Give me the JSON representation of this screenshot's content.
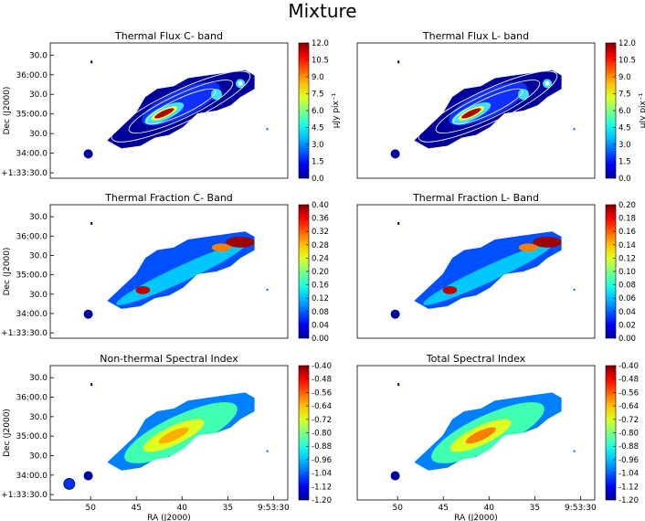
{
  "figure_title": "Mixture",
  "chart_data": [
    {
      "type": "heatmap",
      "title": "Thermal Flux C- band",
      "xlabel": "",
      "ylabel": "Dec (J2000)",
      "y_ticks": [
        "30.0",
        "36:00.0",
        "30.0",
        "35:00.0",
        "30.0",
        "34:00.0",
        "+1:33:30.0"
      ],
      "x_ticks": [],
      "colorbar": {
        "min": 0.0,
        "max": 12.0,
        "ticks": [
          "12.0",
          "10.5",
          "9.0",
          "7.5",
          "6.0",
          "4.5",
          "3.0",
          "1.5",
          "0.0"
        ],
        "label": "μJy pix⁻¹"
      },
      "contours": true,
      "map": "flux"
    },
    {
      "type": "heatmap",
      "title": "Thermal Flux L- band",
      "xlabel": "",
      "ylabel": "",
      "y_ticks": [],
      "x_ticks": [],
      "colorbar": {
        "min": 0.0,
        "max": 12.0,
        "ticks": [
          "12.0",
          "10.5",
          "9.0",
          "7.5",
          "6.0",
          "4.5",
          "3.0",
          "1.5",
          "0.0"
        ],
        "label": "μJy pix⁻¹"
      },
      "contours": true,
      "map": "flux"
    },
    {
      "type": "heatmap",
      "title": "Thermal Fraction C- Band",
      "xlabel": "",
      "ylabel": "Dec (J2000)",
      "y_ticks": [
        "30.0",
        "36:00.0",
        "30.0",
        "35:00.0",
        "30.0",
        "34:00.0",
        "+1:33:30.0"
      ],
      "x_ticks": [],
      "colorbar": {
        "min": 0.0,
        "max": 0.4,
        "ticks": [
          "0.40",
          "0.36",
          "0.32",
          "0.28",
          "0.24",
          "0.20",
          "0.16",
          "0.12",
          "0.08",
          "0.04",
          "0.00"
        ],
        "label": ""
      },
      "contours": false,
      "map": "fraction"
    },
    {
      "type": "heatmap",
      "title": "Thermal Fraction L- Band",
      "xlabel": "",
      "ylabel": "",
      "y_ticks": [],
      "x_ticks": [],
      "colorbar": {
        "min": 0.0,
        "max": 0.2,
        "ticks": [
          "0.20",
          "0.18",
          "0.16",
          "0.14",
          "0.12",
          "0.10",
          "0.08",
          "0.06",
          "0.04",
          "0.02",
          "0.00"
        ],
        "label": ""
      },
      "contours": false,
      "map": "fraction"
    },
    {
      "type": "heatmap",
      "title": "Non-thermal Spectral Index",
      "xlabel": "RA (J2000)",
      "ylabel": "Dec (J2000)",
      "y_ticks": [
        "30.0",
        "36:00.0",
        "30.0",
        "35:00.0",
        "30.0",
        "34:00.0",
        "+1:33:30.0"
      ],
      "x_ticks": [
        "50",
        "45",
        "40",
        "35",
        "9:53:30"
      ],
      "colorbar": {
        "min": -1.2,
        "max": -0.4,
        "ticks": [
          "-0.40",
          "-0.48",
          "-0.56",
          "-0.64",
          "-0.72",
          "-0.80",
          "-0.88",
          "-0.96",
          "-1.04",
          "-1.12",
          "-1.20"
        ],
        "label": ""
      },
      "contours": false,
      "map": "index",
      "beam": true
    },
    {
      "type": "heatmap",
      "title": "Total Spectral Index",
      "xlabel": "RA (J2000)",
      "ylabel": "",
      "y_ticks": [],
      "x_ticks": [
        "50",
        "45",
        "40",
        "35",
        "9:53:30"
      ],
      "colorbar": {
        "min": -1.2,
        "max": -0.4,
        "ticks": [
          "-0.40",
          "-0.48",
          "-0.56",
          "-0.64",
          "-0.72",
          "-0.80",
          "-0.88",
          "-0.96",
          "-1.04",
          "-1.12",
          "-1.20"
        ],
        "label": ""
      },
      "contours": false,
      "map": "index_total"
    }
  ]
}
